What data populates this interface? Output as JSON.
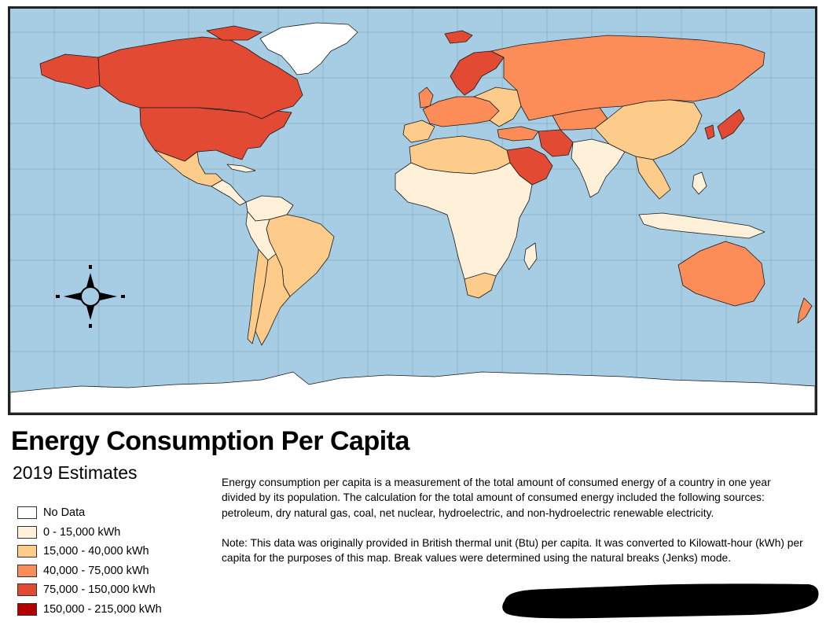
{
  "map": {
    "colors": {
      "ocean": "#a6cde3",
      "no_data": "#ffffff",
      "class1": "#fef0d9",
      "class2": "#fdcc8a",
      "class3": "#fc8d59",
      "class4": "#e34a33",
      "class5": "#b30000"
    },
    "compass": "compass-rose-icon"
  },
  "title": "Energy Consumption Per Capita",
  "subtitle": "2019 Estimates",
  "legend": [
    {
      "label": "No Data",
      "color": "#ffffff"
    },
    {
      "label": "0 - 15,000 kWh",
      "color": "#fef0d9"
    },
    {
      "label": "15,000 - 40,000 kWh",
      "color": "#fdcc8a"
    },
    {
      "label": "40,000 - 75,000 kWh",
      "color": "#fc8d59"
    },
    {
      "label": "75,000 - 150,000 kWh",
      "color": "#e34a33"
    },
    {
      "label": "150,000 - 215,000 kWh",
      "color": "#b30000"
    }
  ],
  "description": {
    "paragraph1": "Energy consumption per capita is a measurement of the total amount of consumed energy of a country in one year divided by its population. The calculation for the total amount of consumed energy included the following sources: petroleum, dry natural gas, coal, net nuclear, hydroelectric, and non-hydroelectric renewable electricity.",
    "paragraph2": "Note: This data was originally provided in British thermal unit (Btu) per capita. It was converted to Kilowatt-hour (kWh) per capita for the purposes of this map. Break values were determined using the natural breaks (Jenks) mode."
  }
}
